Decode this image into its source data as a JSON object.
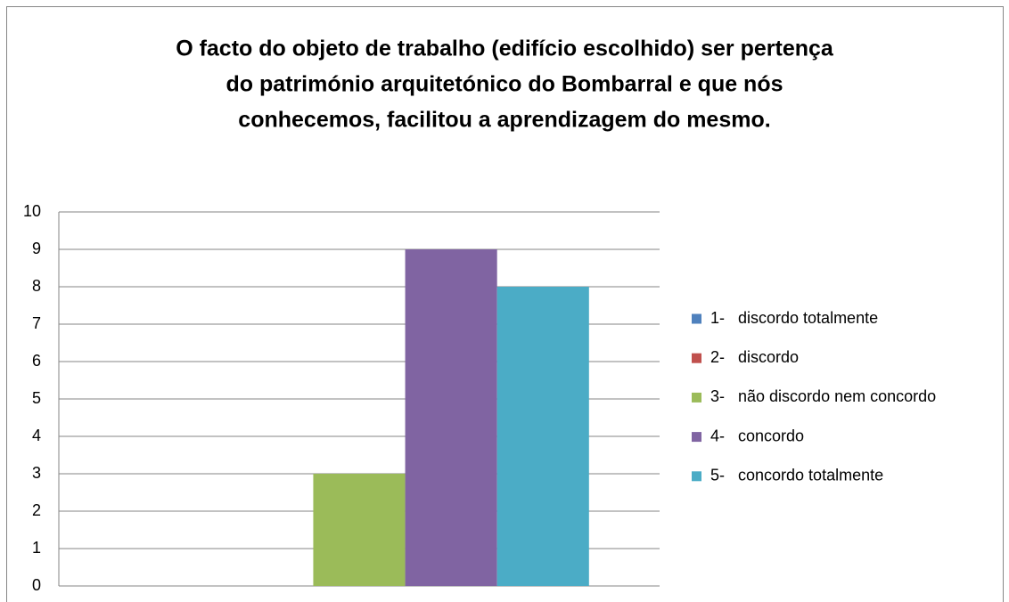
{
  "chart_data": {
    "type": "bar",
    "title": [
      "O facto do objeto de trabalho (edifício escolhido) ser pertença",
      "do património arquitetónico do Bombarral e que nós",
      "conhecemos, facilitou a aprendizagem do mesmo."
    ],
    "categories": [
      null
    ],
    "series": [
      {
        "name": "1-   discordo totalmente",
        "color": "#4f81bd",
        "values": [
          0
        ]
      },
      {
        "name": "2-   discordo",
        "color": "#c0504d",
        "values": [
          0
        ]
      },
      {
        "name": "3-   não discordo nem concordo",
        "color": "#9bbb59",
        "values": [
          3
        ]
      },
      {
        "name": "4-   concordo",
        "color": "#8064a2",
        "values": [
          9
        ]
      },
      {
        "name": "5-   concordo totalmente",
        "color": "#4bacc6",
        "values": [
          8
        ]
      }
    ],
    "ylim": [
      0,
      10
    ],
    "yticks": [
      0,
      1,
      2,
      3,
      4,
      5,
      6,
      7,
      8,
      9,
      10
    ],
    "grid": true,
    "legend": "right"
  }
}
